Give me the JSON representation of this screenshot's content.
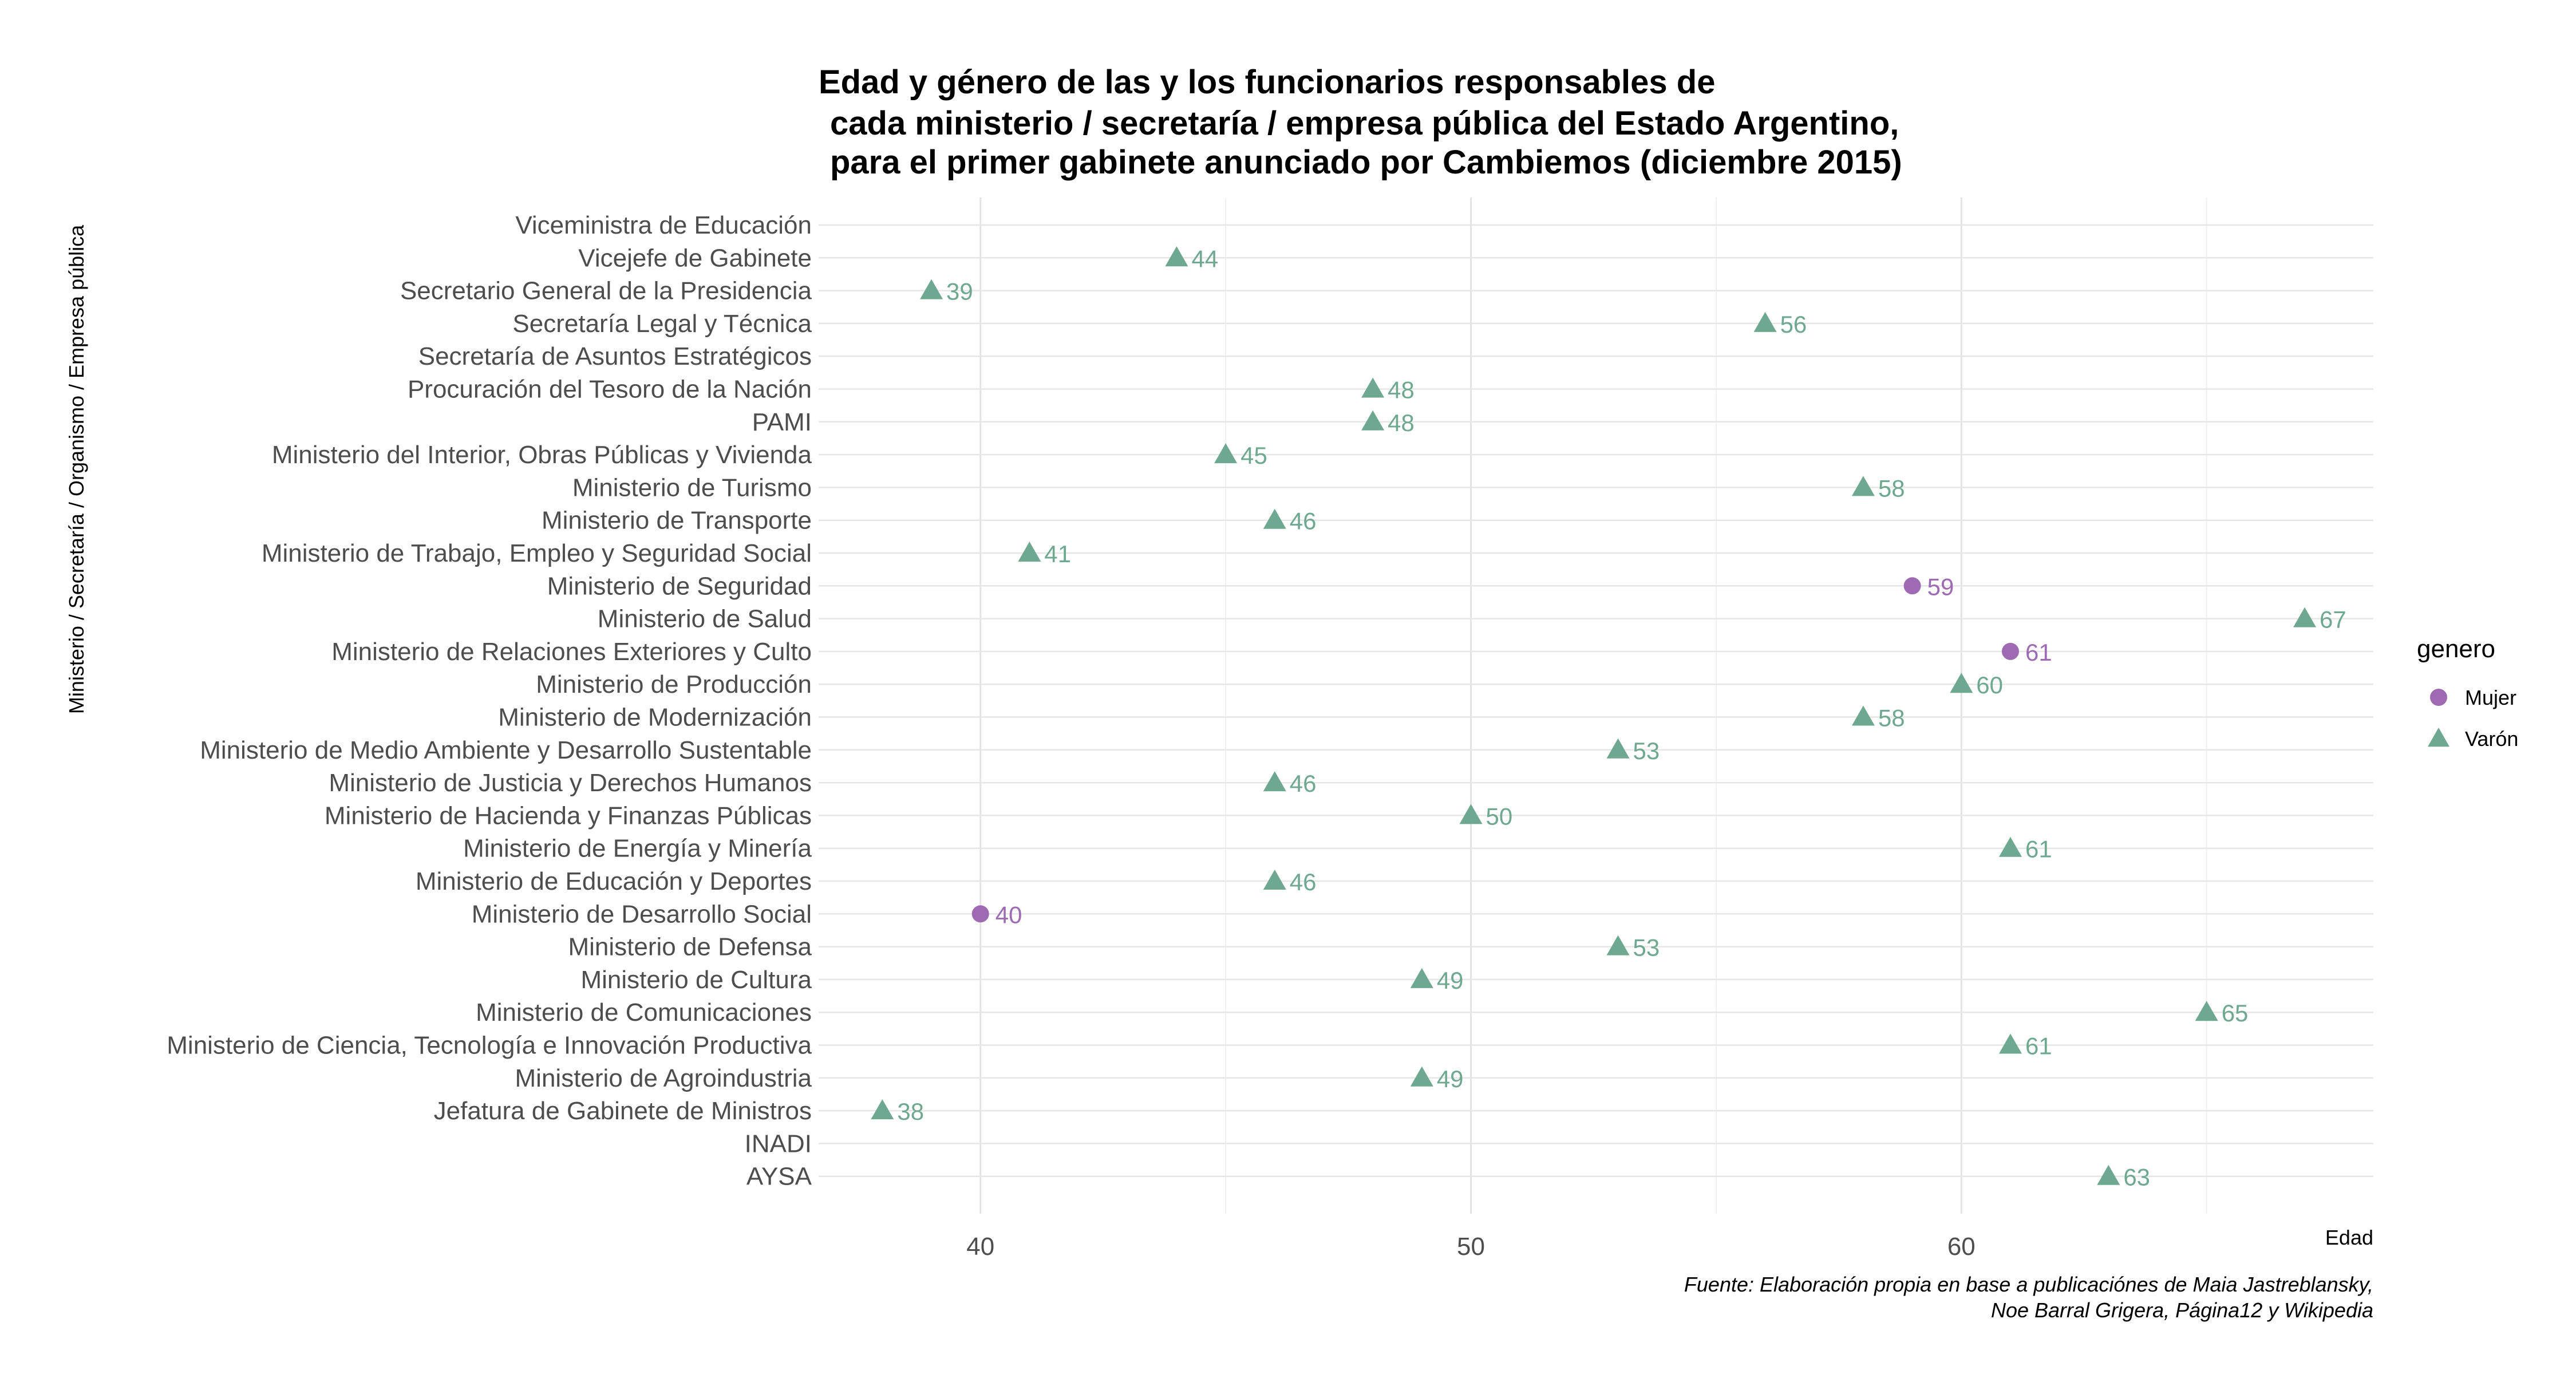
{
  "chart_data": {
    "type": "scatter",
    "title_lines": [
      "Edad y género de las y los funcionarios responsables de",
      "cada ministerio / secretaría / empresa pública del Estado Argentino,",
      "para el primer gabinete anunciado por Cambiemos (diciembre 2015)"
    ],
    "xlabel": "Edad",
    "ylabel": "Ministerio  / Secretaría / Organismo / Empresa pública",
    "xlim": [
      36.7,
      68.4
    ],
    "xticks": [
      40,
      50,
      60
    ],
    "grid": true,
    "legend": {
      "title": "genero",
      "position": "right",
      "entries": [
        {
          "name": "Mujer",
          "shape": "circle",
          "color": "#9e6ab3"
        },
        {
          "name": "Varón",
          "shape": "triangle",
          "color": "#6fa891"
        }
      ]
    },
    "categories": [
      "Viceministra de Educación",
      "Vicejefe de Gabinete",
      "Secretario General de la Presidencia",
      "Secretaría Legal y Técnica",
      "Secretaría de Asuntos Estratégicos",
      "Procuración del Tesoro de la Nación",
      "PAMI",
      "Ministerio del Interior, Obras Públicas y Vivienda",
      "Ministerio de Turismo",
      "Ministerio de Transporte",
      "Ministerio de Trabajo, Empleo y Seguridad Social",
      "Ministerio de Seguridad",
      "Ministerio de Salud",
      "Ministerio de Relaciones Exteriores y Culto",
      "Ministerio de Producción",
      "Ministerio de Modernización",
      "Ministerio de Medio Ambiente y Desarrollo Sustentable",
      "Ministerio de Justicia y Derechos Humanos",
      "Ministerio de Hacienda y Finanzas Públicas",
      "Ministerio de Energía y Minería",
      "Ministerio de Educación y Deportes",
      "Ministerio de Desarrollo Social",
      "Ministerio de Defensa",
      "Ministerio de Cultura",
      "Ministerio de Comunicaciones",
      "Ministerio de Ciencia, Tecnología e Innovación Productiva",
      "Ministerio de Agroindustria",
      "Jefatura de Gabinete de Ministros",
      "INADI",
      "AYSA"
    ],
    "points": [
      {
        "category": "Vicejefe de Gabinete",
        "x": 44,
        "genero": "Varón"
      },
      {
        "category": "Secretario General de la Presidencia",
        "x": 39,
        "genero": "Varón"
      },
      {
        "category": "Secretaría Legal y Técnica",
        "x": 56,
        "genero": "Varón"
      },
      {
        "category": "Procuración del Tesoro de la Nación",
        "x": 48,
        "genero": "Varón"
      },
      {
        "category": "PAMI",
        "x": 48,
        "genero": "Varón"
      },
      {
        "category": "Ministerio del Interior, Obras Públicas y Vivienda",
        "x": 45,
        "genero": "Varón"
      },
      {
        "category": "Ministerio de Turismo",
        "x": 58,
        "genero": "Varón"
      },
      {
        "category": "Ministerio de Transporte",
        "x": 46,
        "genero": "Varón"
      },
      {
        "category": "Ministerio de Trabajo, Empleo y Seguridad Social",
        "x": 41,
        "genero": "Varón"
      },
      {
        "category": "Ministerio de Seguridad",
        "x": 59,
        "genero": "Mujer"
      },
      {
        "category": "Ministerio de Salud",
        "x": 67,
        "genero": "Varón"
      },
      {
        "category": "Ministerio de Relaciones Exteriores y Culto",
        "x": 61,
        "genero": "Mujer"
      },
      {
        "category": "Ministerio de Producción",
        "x": 60,
        "genero": "Varón"
      },
      {
        "category": "Ministerio de Modernización",
        "x": 58,
        "genero": "Varón"
      },
      {
        "category": "Ministerio de Medio Ambiente y Desarrollo Sustentable",
        "x": 53,
        "genero": "Varón"
      },
      {
        "category": "Ministerio de Justicia y Derechos Humanos",
        "x": 46,
        "genero": "Varón"
      },
      {
        "category": "Ministerio de Hacienda y Finanzas Públicas",
        "x": 50,
        "genero": "Varón"
      },
      {
        "category": "Ministerio de Energía y Minería",
        "x": 61,
        "genero": "Varón"
      },
      {
        "category": "Ministerio de Educación y Deportes",
        "x": 46,
        "genero": "Varón"
      },
      {
        "category": "Ministerio de Desarrollo Social",
        "x": 40,
        "genero": "Mujer"
      },
      {
        "category": "Ministerio de Defensa",
        "x": 53,
        "genero": "Varón"
      },
      {
        "category": "Ministerio de Cultura",
        "x": 49,
        "genero": "Varón"
      },
      {
        "category": "Ministerio de Comunicaciones",
        "x": 65,
        "genero": "Varón"
      },
      {
        "category": "Ministerio de Ciencia, Tecnología e Innovación Productiva",
        "x": 61,
        "genero": "Varón"
      },
      {
        "category": "Ministerio de Agroindustria",
        "x": 49,
        "genero": "Varón"
      },
      {
        "category": "Jefatura de Gabinete de Ministros",
        "x": 38,
        "genero": "Varón"
      },
      {
        "category": "AYSA",
        "x": 63,
        "genero": "Varón"
      }
    ],
    "caption_lines": [
      "Fuente: Elaboración propia en base a publicaciónes de Maia Jastreblansky,",
      "Noe Barral Grigera, Página12 y Wikipedia"
    ]
  }
}
